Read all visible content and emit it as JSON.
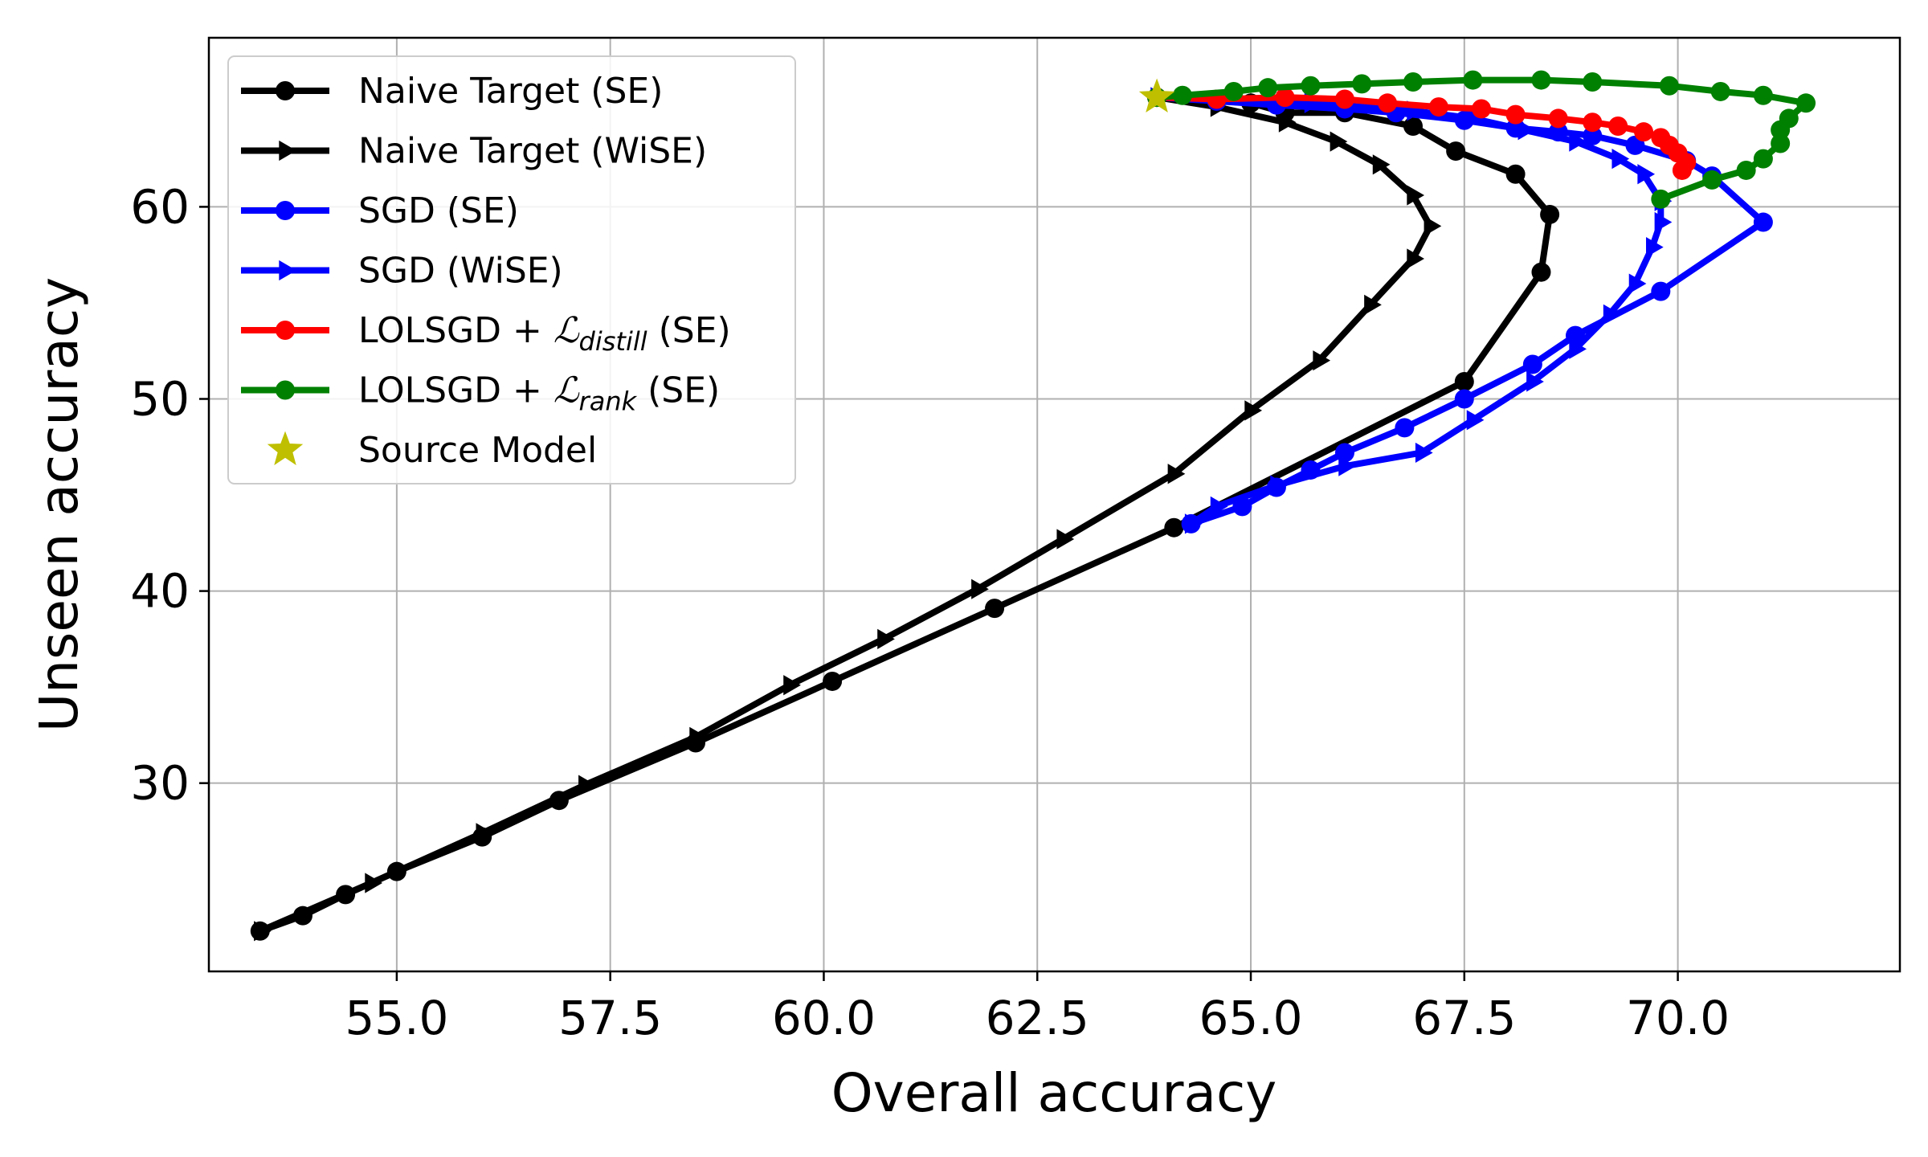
{
  "chart_data": {
    "type": "line",
    "title": "",
    "xlabel": "Overall accuracy",
    "ylabel": "Unseen accuracy",
    "xlim": [
      52.8,
      72.6
    ],
    "ylim": [
      20.2,
      68.8
    ],
    "xticks": [
      55.0,
      57.5,
      60.0,
      62.5,
      65.0,
      67.5,
      70.0
    ],
    "xtick_labels": [
      "55.0",
      "57.5",
      "60.0",
      "62.5",
      "65.0",
      "67.5",
      "70.0"
    ],
    "yticks": [
      30,
      40,
      50,
      60
    ],
    "ytick_labels": [
      "30",
      "40",
      "50",
      "60"
    ],
    "grid": true,
    "legend_position": "upper-left",
    "series": [
      {
        "name": "Naive Target (SE)",
        "legend": {
          "main": "Naive Target (SE)"
        },
        "color": "#000000",
        "marker": "circle",
        "x": [
          63.9,
          65.0,
          65.4,
          66.1,
          66.9,
          67.4,
          68.1,
          68.5,
          68.4,
          67.5,
          64.1,
          62.0,
          60.1,
          58.5,
          56.9,
          56.0,
          55.0,
          54.4,
          53.9,
          53.4
        ],
        "y": [
          65.7,
          65.4,
          64.9,
          64.9,
          64.2,
          62.9,
          61.7,
          59.6,
          56.6,
          50.9,
          43.3,
          39.1,
          35.3,
          32.1,
          29.1,
          27.2,
          25.4,
          24.2,
          23.1,
          22.3
        ]
      },
      {
        "name": "Naive Target (WiSE)",
        "legend": {
          "main": "Naive Target (WiSE)"
        },
        "color": "#000000",
        "marker": "triangle-right",
        "x": [
          63.9,
          64.6,
          65.4,
          66.0,
          66.5,
          66.9,
          67.1,
          66.9,
          66.4,
          65.8,
          65.0,
          64.1,
          62.8,
          61.8,
          60.7,
          59.6,
          58.5,
          57.2,
          56.0,
          54.7,
          53.4
        ],
        "y": [
          65.7,
          65.2,
          64.4,
          63.4,
          62.2,
          60.6,
          59.0,
          57.3,
          54.9,
          52.0,
          49.4,
          46.1,
          42.7,
          40.1,
          37.5,
          35.1,
          32.4,
          29.9,
          27.4,
          24.8,
          22.3
        ]
      },
      {
        "name": "SGD (SE)",
        "legend": {
          "main": "SGD (SE)"
        },
        "color": "#0000ff",
        "marker": "circle",
        "x": [
          63.9,
          64.6,
          65.3,
          66.1,
          66.7,
          67.5,
          68.1,
          68.6,
          69.0,
          69.5,
          70.1,
          70.4,
          71.0,
          69.8,
          68.8,
          68.3,
          67.5,
          66.8,
          66.1,
          65.7,
          65.3,
          64.9,
          64.3
        ],
        "y": [
          65.7,
          65.5,
          65.3,
          65.1,
          64.9,
          64.5,
          64.1,
          63.9,
          63.7,
          63.2,
          62.4,
          61.6,
          59.2,
          55.6,
          53.3,
          51.8,
          50.0,
          48.5,
          47.2,
          46.3,
          45.4,
          44.4,
          43.5
        ]
      },
      {
        "name": "SGD (WiSE)",
        "legend": {
          "main": "SGD (WiSE)"
        },
        "color": "#0000ff",
        "marker": "triangle-right",
        "x": [
          63.9,
          65.7,
          66.9,
          67.6,
          68.2,
          68.8,
          69.3,
          69.6,
          69.8,
          69.8,
          69.7,
          69.5,
          69.2,
          68.8,
          68.3,
          67.6,
          67.0,
          66.1,
          65.3,
          64.6,
          64.3
        ],
        "y": [
          65.7,
          65.4,
          65.0,
          64.6,
          64.0,
          63.4,
          62.5,
          61.7,
          60.3,
          59.2,
          57.9,
          56.0,
          54.4,
          52.6,
          50.9,
          48.9,
          47.2,
          46.5,
          45.5,
          44.4,
          43.5
        ]
      },
      {
        "name": "LOLSGD + L_distill (SE)",
        "legend": {
          "pre": "LOLSGD + ",
          "script": "ℒ",
          "sub": "distill",
          "post": " (SE)"
        },
        "color": "#ff0000",
        "marker": "circle",
        "x": [
          63.9,
          64.6,
          65.4,
          66.1,
          66.6,
          67.2,
          67.7,
          68.1,
          68.6,
          69.0,
          69.3,
          69.6,
          69.8,
          69.9,
          70.0,
          70.1,
          70.05
        ],
        "y": [
          65.7,
          65.6,
          65.7,
          65.6,
          65.4,
          65.2,
          65.1,
          64.8,
          64.6,
          64.4,
          64.2,
          63.9,
          63.6,
          63.2,
          62.8,
          62.3,
          61.9
        ]
      },
      {
        "name": "LOLSGD + L_rank (SE)",
        "legend": {
          "pre": "LOLSGD + ",
          "script": "ℒ",
          "sub": "rank",
          "post": " (SE)"
        },
        "color": "#008000",
        "marker": "circle",
        "x": [
          63.9,
          64.2,
          64.8,
          65.2,
          65.7,
          66.3,
          66.9,
          67.6,
          68.4,
          69.0,
          69.9,
          70.5,
          71.0,
          71.5,
          71.3,
          71.2,
          71.2,
          71.0,
          70.8,
          70.4,
          69.8
        ],
        "y": [
          65.7,
          65.8,
          66.0,
          66.2,
          66.3,
          66.4,
          66.5,
          66.6,
          66.6,
          66.5,
          66.3,
          66.0,
          65.8,
          65.4,
          64.6,
          64.0,
          63.3,
          62.5,
          61.9,
          61.4,
          60.4
        ]
      }
    ],
    "source_model": {
      "name": "Source Model",
      "legend": {
        "main": "Source Model"
      },
      "color": "#bfbf00",
      "marker": "star",
      "x": 63.9,
      "y": 65.7
    }
  }
}
